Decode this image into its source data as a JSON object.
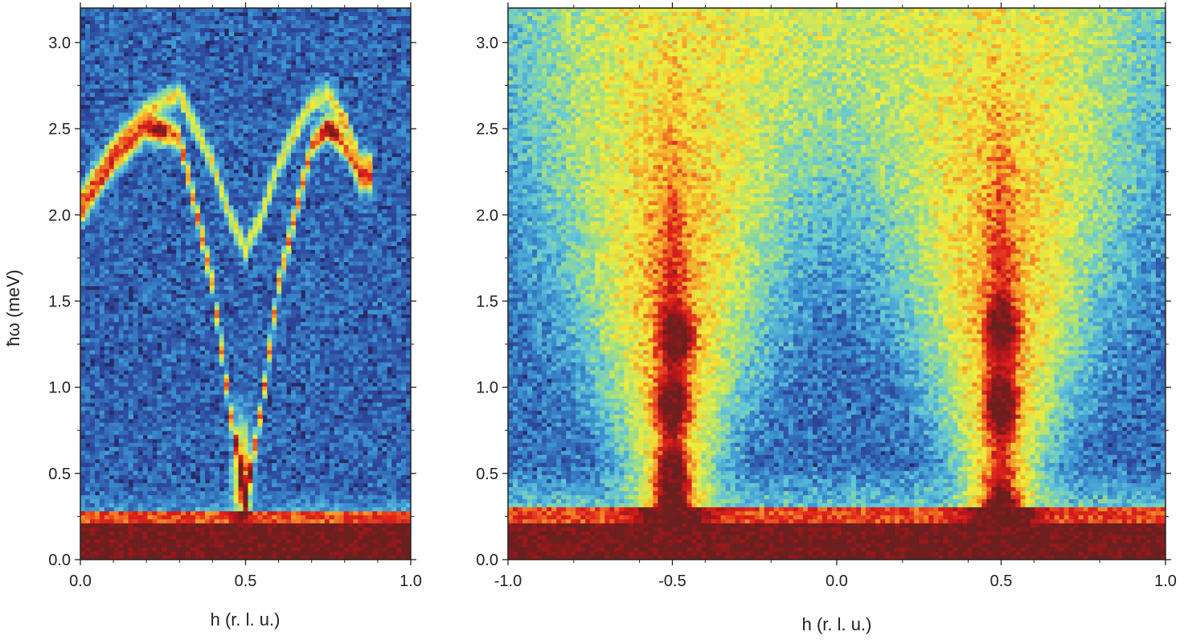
{
  "chart_data": [
    {
      "type": "heatmap",
      "title": "",
      "xlabel": "h (r. l. u.)",
      "ylabel": "ħω (meV)",
      "xlim": [
        0.0,
        1.0
      ],
      "ylim": [
        0.0,
        3.2
      ],
      "xticks": [
        "0.0",
        "0.5",
        "1.0"
      ],
      "yticks": [
        "0.0",
        "0.5",
        "1.0",
        "1.5",
        "2.0",
        "2.5",
        "3.0"
      ],
      "colormap": [
        "#262c68",
        "#2e4aa0",
        "#3a8fd0",
        "#63c8d8",
        "#a8e07a",
        "#f1ee3c",
        "#f6a12a",
        "#e2241d",
        "#b0151a",
        "#6b1f1f"
      ],
      "dispersion": {
        "description_points_h": [
          0.0,
          0.1,
          0.2,
          0.3,
          0.4,
          0.45,
          0.5,
          0.55,
          0.6,
          0.7,
          0.75,
          0.8,
          0.85
        ],
        "lower_branch_meV": [
          2.0,
          2.3,
          2.5,
          2.45,
          1.6,
          0.9,
          0.35,
          0.9,
          1.6,
          2.4,
          2.5,
          2.4,
          2.2
        ],
        "upper_branch_meV": [
          2.1,
          2.4,
          2.6,
          2.7,
          2.3,
          2.0,
          1.8,
          2.0,
          2.3,
          2.65,
          2.7,
          2.55,
          2.3
        ]
      },
      "elastic_line_meV": 0.2
    },
    {
      "type": "heatmap",
      "title": "",
      "xlabel": "h (r. l. u.)",
      "ylabel": "",
      "xlim": [
        -1.0,
        1.0
      ],
      "ylim": [
        0.0,
        3.2
      ],
      "xticks": [
        "-1.0",
        "-0.5",
        "0.0",
        "0.5",
        "1.0"
      ],
      "yticks": [
        "0.0",
        "0.5",
        "1.0",
        "1.5",
        "2.0",
        "2.5",
        "3.0"
      ],
      "colormap": [
        "#262c68",
        "#2e4aa0",
        "#3a8fd0",
        "#63c8d8",
        "#a8e07a",
        "#f1ee3c",
        "#f6a12a",
        "#e2241d",
        "#b0151a",
        "#6b1f1f"
      ],
      "continuum_centers_h": [
        -0.5,
        0.5
      ],
      "hot_spots": [
        {
          "h": -0.5,
          "e": 0.9
        },
        {
          "h": -0.5,
          "e": 0.5
        },
        {
          "h": 0.5,
          "e": 0.9
        },
        {
          "h": 0.5,
          "e": 1.35
        },
        {
          "h": -0.48,
          "e": 1.3
        }
      ],
      "elastic_line_meV": 0.22
    }
  ]
}
